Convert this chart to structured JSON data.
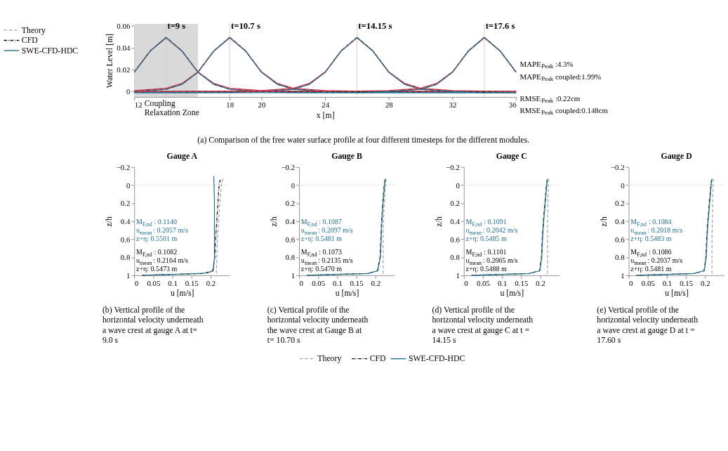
{
  "chart_data": [
    {
      "type": "line",
      "xlabel": "x [m]",
      "ylabel": "Water Level [m]",
      "xlim": [
        12,
        36
      ],
      "ylim": [
        -0.005,
        0.062
      ],
      "xticks": [
        12,
        18,
        20,
        24,
        28,
        32,
        36
      ],
      "yticks": [
        0,
        0.02,
        0.04,
        0.06
      ],
      "legend": "left",
      "series": [
        {
          "name": "Theory",
          "color": "#a0a0a0",
          "line_style": "dashed",
          "x": [
            12,
            13,
            14,
            15,
            16,
            17,
            18,
            20,
            22,
            36
          ],
          "values": [
            0.018,
            0.0375,
            0.05,
            0.0375,
            0.018,
            0.0069,
            0.0024,
            0.0003,
            0,
            0
          ]
        },
        {
          "name": "CFD",
          "color": "#000000",
          "line_style": "dotted",
          "x": [
            12,
            13,
            14,
            15,
            16,
            17,
            18,
            20,
            22,
            36
          ],
          "values": [
            0.0178,
            0.0372,
            0.0495,
            0.0372,
            0.0178,
            0.0068,
            0.0023,
            0.0002,
            0,
            0
          ]
        },
        {
          "color": "#d6374e",
          "line_style": "solid",
          "x": [
            12,
            13,
            14,
            15,
            16,
            17,
            18,
            20,
            22,
            36
          ],
          "values": [
            0.018,
            0.037,
            0.049,
            0.037,
            0.018,
            0.0075,
            0.003,
            0.001,
            0.0005,
            0
          ]
        },
        {
          "name": "SWE-CFD-HDC",
          "color": "#1f6e8c",
          "line_style": "solid",
          "x": [
            12,
            13,
            14,
            15,
            16,
            17,
            18,
            20,
            22,
            36
          ],
          "values": [
            0.0175,
            0.037,
            0.0495,
            0.037,
            0.0175,
            0.0065,
            0.002,
            0,
            -0.001,
            -0.001
          ]
        },
        {
          "color": "#a0a0a0",
          "line_style": "dashed",
          "x": [
            12,
            14,
            15,
            16,
            17,
            18,
            19,
            20,
            21,
            22,
            24,
            26,
            36
          ],
          "values": [
            0.0003,
            0.0024,
            0.0069,
            0.018,
            0.0375,
            0.05,
            0.0375,
            0.018,
            0.0069,
            0.0024,
            0.0003,
            0,
            0
          ]
        },
        {
          "color": "#000000",
          "line_style": "dotted",
          "x": [
            12,
            14,
            15,
            16,
            17,
            18,
            19,
            20,
            21,
            22,
            24,
            26,
            36
          ],
          "values": [
            0.0002,
            0.0023,
            0.0068,
            0.0178,
            0.0372,
            0.0495,
            0.0372,
            0.0178,
            0.0068,
            0.0023,
            0.0002,
            0,
            0
          ]
        },
        {
          "color": "#d6374e",
          "line_style": "solid",
          "x": [
            12,
            14,
            15,
            16,
            17,
            18,
            19,
            20,
            21,
            22,
            24,
            26,
            36
          ],
          "values": [
            0.001,
            0.003,
            0.0075,
            0.018,
            0.037,
            0.049,
            0.037,
            0.018,
            0.0075,
            0.003,
            0.001,
            0.0005,
            0
          ]
        },
        {
          "color": "#1f6e8c",
          "line_style": "solid",
          "x": [
            12,
            14,
            15,
            16,
            17,
            18,
            19,
            20,
            21,
            22,
            24,
            26,
            36
          ],
          "values": [
            0,
            0.002,
            0.0065,
            0.0175,
            0.037,
            0.0495,
            0.037,
            0.0175,
            0.0065,
            0.002,
            0,
            -0.001,
            -0.001
          ]
        },
        {
          "color": "#a0a0a0",
          "line_style": "dashed",
          "x": [
            12,
            18,
            20,
            22,
            23,
            24,
            25,
            26,
            27,
            28,
            29,
            30,
            32,
            34,
            36
          ],
          "values": [
            0,
            0,
            0.0003,
            0.0024,
            0.0069,
            0.018,
            0.0375,
            0.05,
            0.0375,
            0.018,
            0.0069,
            0.0024,
            0.0003,
            0,
            0
          ]
        },
        {
          "color": "#000000",
          "line_style": "dotted",
          "x": [
            12,
            18,
            20,
            22,
            23,
            24,
            25,
            26,
            27,
            28,
            29,
            30,
            32,
            34,
            36
          ],
          "values": [
            0,
            0,
            0.0002,
            0.0023,
            0.0068,
            0.0178,
            0.0372,
            0.0495,
            0.0372,
            0.0178,
            0.0068,
            0.0023,
            0.0002,
            0,
            0
          ]
        },
        {
          "color": "#d6374e",
          "line_style": "solid",
          "x": [
            12,
            18,
            20,
            22,
            23,
            24,
            25,
            26,
            27,
            28,
            29,
            30,
            32,
            34,
            36
          ],
          "values": [
            0,
            0.0005,
            0.001,
            0.003,
            0.0075,
            0.018,
            0.037,
            0.049,
            0.037,
            0.018,
            0.0075,
            0.003,
            0.001,
            0.0005,
            0
          ]
        },
        {
          "color": "#1f6e8c",
          "line_style": "solid",
          "x": [
            12,
            18,
            20,
            22,
            23,
            24,
            25,
            26,
            27,
            28,
            29,
            30,
            32,
            34,
            36
          ],
          "values": [
            -0.001,
            -0.001,
            0,
            0.002,
            0.0065,
            0.0175,
            0.037,
            0.0495,
            0.037,
            0.0175,
            0.0065,
            0.002,
            0,
            -0.001,
            -0.001
          ]
        },
        {
          "color": "#a0a0a0",
          "line_style": "dashed",
          "x": [
            12,
            26,
            28,
            30,
            31,
            32,
            33,
            34,
            35,
            36
          ],
          "values": [
            0,
            0,
            0.0003,
            0.0024,
            0.0069,
            0.018,
            0.0375,
            0.05,
            0.0375,
            0.018
          ]
        },
        {
          "color": "#000000",
          "line_style": "dotted",
          "x": [
            12,
            26,
            28,
            30,
            31,
            32,
            33,
            34,
            35,
            36
          ],
          "values": [
            0,
            0,
            0.0002,
            0.0023,
            0.0068,
            0.0178,
            0.0372,
            0.0495,
            0.0372,
            0.0178
          ]
        },
        {
          "color": "#d6374e",
          "line_style": "solid",
          "x": [
            12,
            26,
            28,
            30,
            31,
            32,
            33,
            34,
            35,
            36
          ],
          "values": [
            0,
            0.0005,
            0.001,
            0.003,
            0.0075,
            0.018,
            0.037,
            0.049,
            0.037,
            0.018
          ]
        },
        {
          "color": "#1f6e8c",
          "line_style": "solid",
          "x": [
            12,
            26,
            28,
            30,
            31,
            32,
            33,
            34,
            35,
            36
          ],
          "values": [
            -0.001,
            -0.001,
            0,
            0.002,
            0.0065,
            0.0175,
            0.037,
            0.0495,
            0.037,
            0.0175
          ]
        }
      ],
      "ref_lines": [
        {
          "axis": "x",
          "value": 14,
          "color": "#cccccc"
        },
        {
          "axis": "x",
          "value": 18,
          "color": "#cccccc"
        },
        {
          "axis": "x",
          "value": 26,
          "color": "#cccccc"
        },
        {
          "axis": "x",
          "value": 34,
          "color": "#cccccc"
        },
        {
          "axis": "y",
          "value": 0,
          "color": "#dddddd"
        }
      ],
      "bands": [
        {
          "axis": "x",
          "from": 12,
          "to": 16,
          "label": "Coupling Relaxation Zone",
          "color": "#d9d9d9"
        }
      ],
      "annotations": [
        {
          "text": "t=9 s",
          "x": 14,
          "y": 0.06
        },
        {
          "text": "t=10.7 s",
          "x": 18,
          "y": 0.06
        },
        {
          "text": "t=14.15 s",
          "x": 26,
          "y": 0.06
        },
        {
          "text": "t=17.6 s",
          "x": 34,
          "y": 0.06
        },
        "MAPE$_{Peak}$:4.3%",
        "MAPE$_{Peak}$ coupled:1.99%",
        "RMSE$_{Peak}$:0.22cm",
        "RMSE$_{Peak}$ coupled:0.148cm",
        "(a) Comparison of the free water surface profile at four different timesteps for the different modules."
      ]
    },
    {
      "type": "line",
      "title": "Gauge A",
      "xlabel": "u [m/s]",
      "ylabel": "z/h",
      "xlim": [
        0,
        0.25
      ],
      "ylim": [
        1,
        -0.2
      ],
      "xticks": [
        0,
        0.05,
        0.1,
        0.15,
        0.2
      ],
      "yticks": [
        -0.2,
        0,
        0.2,
        0.4,
        0.6,
        0.8,
        1
      ],
      "legend": "bottom",
      "series": [
        {
          "name": "Theory",
          "color": "#a0a0a0",
          "line_style": "dashed",
          "x": [
            0.232,
            0.228,
            0.224,
            0.221,
            0.218,
            0.216,
            0.215
          ],
          "values": [
            -0.07,
            0,
            0.2,
            0.4,
            0.6,
            0.8,
            1
          ]
        },
        {
          "name": "CFD",
          "color": "#000000",
          "line_style": "dotted",
          "x": [
            0.225,
            0.222,
            0.219,
            0.216,
            0.213,
            0.211,
            0.205,
            0.18,
            0.1,
            0.02
          ],
          "values": [
            -0.06,
            0,
            0.2,
            0.4,
            0.6,
            0.8,
            0.95,
            0.98,
            0.99,
            1
          ]
        },
        {
          "name": "SWE-CFD-HDC",
          "color": "#1f6e8c",
          "line_style": "solid",
          "x": [
            0.208,
            0.209,
            0.21,
            0.21,
            0.21,
            0.21,
            0.207,
            0.19,
            0.1,
            0.02
          ],
          "values": [
            -0.1,
            0,
            0.2,
            0.4,
            0.6,
            0.8,
            0.95,
            0.975,
            0.99,
            1
          ]
        }
      ],
      "ref_lines": [
        {
          "axis": "y",
          "value": 0,
          "color": "#e6e6e6"
        }
      ],
      "annotations": [
        "M$_{F,nd}$: 0.1140\nu$_{mean}$: 0.2057 m/s\nz+η: 0.5501 m",
        "M$_{F,nd}$: 0.1082\nu$_{mean}$: 0.2164 m/s\nz+η: 0.5473 m",
        "(b) Vertical profile of the horizontal velocity underneath a wave crest at gauge A at t= 9.0 s"
      ]
    },
    {
      "type": "line",
      "title": "Gauge B",
      "xlabel": "u [m/s]",
      "ylabel": "z/h",
      "xlim": [
        0,
        0.25
      ],
      "ylim": [
        1,
        -0.2
      ],
      "xticks": [
        0,
        0.05,
        0.1,
        0.15,
        0.2
      ],
      "yticks": [
        -0.2,
        0,
        0.2,
        0.4,
        0.6,
        0.8,
        1
      ],
      "legend": "bottom",
      "series": [
        {
          "name": "Theory",
          "color": "#a0a0a0",
          "line_style": "dashed",
          "x": [
            0.228,
            0.226,
            0.223,
            0.221,
            0.22,
            0.22,
            0.22
          ],
          "values": [
            -0.07,
            0,
            0.2,
            0.4,
            0.6,
            0.8,
            1
          ]
        },
        {
          "name": "CFD",
          "color": "#000000",
          "line_style": "dotted",
          "x": [
            0.225,
            0.223,
            0.219,
            0.216,
            0.214,
            0.212,
            0.205,
            0.18,
            0.1,
            0.02
          ],
          "values": [
            -0.06,
            0,
            0.2,
            0.4,
            0.6,
            0.8,
            0.95,
            0.98,
            0.99,
            1
          ]
        },
        {
          "name": "SWE-CFD-HDC",
          "color": "#1f6e8c",
          "line_style": "solid",
          "x": [
            0.226,
            0.224,
            0.22,
            0.217,
            0.215,
            0.213,
            0.206,
            0.18,
            0.1,
            0.02
          ],
          "values": [
            -0.07,
            0,
            0.2,
            0.4,
            0.6,
            0.8,
            0.95,
            0.98,
            0.99,
            1
          ]
        }
      ],
      "ref_lines": [
        {
          "axis": "y",
          "value": 0,
          "color": "#e6e6e6"
        }
      ],
      "annotations": [
        "M$_{F,nd}$: 0.1087\nu$_{mean}$: 0.2097 m/s\nz+η: 0.5481 m",
        "M$_{F,nd}$: 0.1073\nu$_{mean}$: 0.2135 m/s\nz+η: 0.5470 m",
        "(c) Vertical profile of the horizontal velocity underneath the wave crest at Gauge B at t= 10.70 s"
      ]
    },
    {
      "type": "line",
      "title": "Gauge C",
      "xlabel": "u [m/s]",
      "ylabel": "z/h",
      "xlim": [
        0,
        0.25
      ],
      "ylim": [
        1,
        -0.2
      ],
      "xticks": [
        0,
        0.05,
        0.1,
        0.15,
        0.2
      ],
      "yticks": [
        -0.2,
        0,
        0.2,
        0.4,
        0.6,
        0.8,
        1
      ],
      "legend": "bottom",
      "series": [
        {
          "name": "Theory",
          "color": "#a0a0a0",
          "line_style": "dashed",
          "x": [
            0.222,
            0.221,
            0.22,
            0.219,
            0.219,
            0.219,
            0.219
          ],
          "values": [
            -0.07,
            0,
            0.2,
            0.4,
            0.6,
            0.8,
            1
          ]
        },
        {
          "name": "CFD",
          "color": "#000000",
          "line_style": "dotted",
          "x": [
            0.218,
            0.216,
            0.212,
            0.208,
            0.205,
            0.203,
            0.198,
            0.17,
            0.1,
            0.02
          ],
          "values": [
            -0.06,
            0,
            0.2,
            0.4,
            0.6,
            0.8,
            0.95,
            0.98,
            0.99,
            1
          ]
        },
        {
          "name": "SWE-CFD-HDC",
          "color": "#1f6e8c",
          "line_style": "solid",
          "x": [
            0.219,
            0.217,
            0.213,
            0.209,
            0.206,
            0.204,
            0.199,
            0.17,
            0.1,
            0.02
          ],
          "values": [
            -0.07,
            0,
            0.2,
            0.4,
            0.6,
            0.8,
            0.95,
            0.98,
            0.99,
            1
          ]
        }
      ],
      "ref_lines": [
        {
          "axis": "y",
          "value": 0,
          "color": "#e6e6e6"
        }
      ],
      "annotations": [
        "M$_{F,nd}$: 0.1091\nu$_{mean}$: 0.2042 m/s\nz+η: 0.5485 m",
        "M$_{F,nd}$: 0.1101\nu$_{mean}$: 0.2065 m/s\nz+η: 0.5488 m",
        "(d) Vertical profile of the horizontal velocity underneath a wave crest at gauge C at t = 14.15 s"
      ]
    },
    {
      "type": "line",
      "title": "Gauge D",
      "xlabel": "u [m/s]",
      "ylabel": "z/h",
      "xlim": [
        0,
        0.25
      ],
      "ylim": [
        1,
        -0.2
      ],
      "xticks": [
        0,
        0.05,
        0.1,
        0.15,
        0.2
      ],
      "yticks": [
        -0.2,
        0,
        0.2,
        0.4,
        0.6,
        0.8,
        1
      ],
      "legend": "bottom",
      "series": [
        {
          "name": "Theory",
          "color": "#a0a0a0",
          "line_style": "dashed",
          "x": [
            0.222,
            0.221,
            0.22,
            0.219,
            0.218,
            0.218,
            0.218
          ],
          "values": [
            -0.07,
            0,
            0.2,
            0.4,
            0.6,
            0.8,
            1
          ]
        },
        {
          "name": "CFD",
          "color": "#000000",
          "line_style": "dotted",
          "x": [
            0.217,
            0.215,
            0.211,
            0.207,
            0.204,
            0.202,
            0.197,
            0.17,
            0.1,
            0.02
          ],
          "values": [
            -0.06,
            0,
            0.2,
            0.4,
            0.6,
            0.8,
            0.95,
            0.98,
            0.99,
            1
          ]
        },
        {
          "name": "SWE-CFD-HDC",
          "color": "#1f6e8c",
          "line_style": "solid",
          "x": [
            0.218,
            0.216,
            0.212,
            0.208,
            0.205,
            0.203,
            0.198,
            0.17,
            0.1,
            0.02
          ],
          "values": [
            -0.07,
            0,
            0.2,
            0.4,
            0.6,
            0.8,
            0.95,
            0.98,
            0.99,
            1
          ]
        }
      ],
      "ref_lines": [
        {
          "axis": "y",
          "value": 0,
          "color": "#e6e6e6"
        }
      ],
      "annotations": [
        "M$_{F,nd}$: 0.1084\nu$_{mean}$: 0.2018 m/s\nz+η: 0.5483 m",
        "M$_{F,nd}$: 0.1086\nu$_{mean}$: 0.2037 m/s\nz+η: 0.5481 m",
        "(e) Vertical profile of the horizontal velocity underneath a wave crest at gauge D at t = 17.60 s"
      ]
    }
  ]
}
